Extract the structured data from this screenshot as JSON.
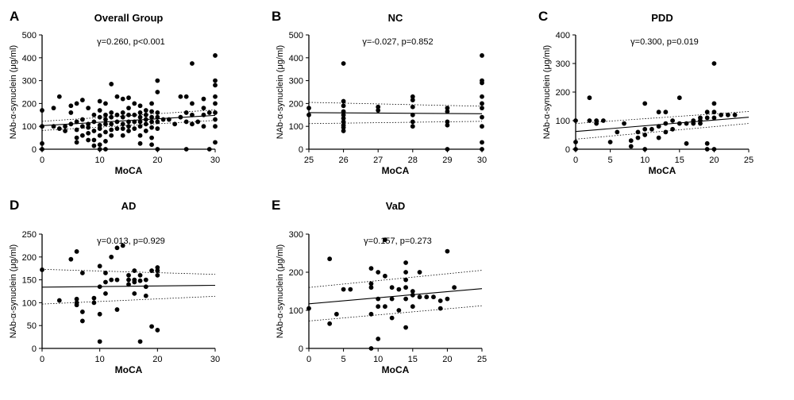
{
  "chart_data": [
    {
      "type": "scatter",
      "panel": "A",
      "title": "Overall Group",
      "stat": "γ=0.260, p<0.001",
      "xlabel": "MoCA",
      "ylabel": "NAb-α-synuclein (μg/ml)",
      "xlim": [
        0,
        30
      ],
      "ylim": [
        0,
        500
      ],
      "xticks": [
        "0",
        "10",
        "20",
        "30"
      ],
      "yticks": [
        "0",
        "100",
        "200",
        "300",
        "400",
        "500"
      ],
      "fit": {
        "y0": 103,
        "y1": 148
      },
      "ci_upper": {
        "y0": 122,
        "y1": 172
      },
      "ci_lower": {
        "y0": 82,
        "y1": 126
      },
      "points": [
        [
          0,
          170
        ],
        [
          0,
          100
        ],
        [
          0,
          25
        ],
        [
          0,
          0
        ],
        [
          2,
          100
        ],
        [
          2,
          180
        ],
        [
          3,
          230
        ],
        [
          3,
          90
        ],
        [
          4,
          100
        ],
        [
          4,
          80
        ],
        [
          5,
          110
        ],
        [
          5,
          160
        ],
        [
          5,
          190
        ],
        [
          6,
          200
        ],
        [
          6,
          120
        ],
        [
          6,
          85
        ],
        [
          6,
          50
        ],
        [
          6,
          30
        ],
        [
          7,
          215
        ],
        [
          7,
          130
        ],
        [
          7,
          100
        ],
        [
          7,
          60
        ],
        [
          8,
          180
        ],
        [
          8,
          110
        ],
        [
          8,
          95
        ],
        [
          8,
          70
        ],
        [
          8,
          40
        ],
        [
          9,
          150
        ],
        [
          9,
          120
        ],
        [
          9,
          80
        ],
        [
          9,
          40
        ],
        [
          9,
          15
        ],
        [
          10,
          210
        ],
        [
          10,
          170
        ],
        [
          10,
          140
        ],
        [
          10,
          105
        ],
        [
          10,
          90
        ],
        [
          10,
          60
        ],
        [
          10,
          20
        ],
        [
          10,
          0
        ],
        [
          11,
          200
        ],
        [
          11,
          150
        ],
        [
          11,
          130
        ],
        [
          11,
          110
        ],
        [
          11,
          75
        ],
        [
          11,
          35
        ],
        [
          11,
          0
        ],
        [
          12,
          285
        ],
        [
          12,
          160
        ],
        [
          12,
          140
        ],
        [
          12,
          110
        ],
        [
          12,
          85
        ],
        [
          12,
          60
        ],
        [
          13,
          230
        ],
        [
          13,
          150
        ],
        [
          13,
          120
        ],
        [
          13,
          90
        ],
        [
          14,
          220
        ],
        [
          14,
          160
        ],
        [
          14,
          140
        ],
        [
          14,
          110
        ],
        [
          14,
          90
        ],
        [
          14,
          60
        ],
        [
          15,
          225
        ],
        [
          15,
          180
        ],
        [
          15,
          150
        ],
        [
          15,
          120
        ],
        [
          15,
          100
        ],
        [
          15,
          80
        ],
        [
          16,
          200
        ],
        [
          16,
          150
        ],
        [
          16,
          120
        ],
        [
          16,
          90
        ],
        [
          17,
          190
        ],
        [
          17,
          160
        ],
        [
          17,
          140
        ],
        [
          17,
          120
        ],
        [
          17,
          100
        ],
        [
          17,
          60
        ],
        [
          17,
          25
        ],
        [
          18,
          170
        ],
        [
          18,
          150
        ],
        [
          18,
          130
        ],
        [
          18,
          110
        ],
        [
          18,
          80
        ],
        [
          19,
          200
        ],
        [
          19,
          165
        ],
        [
          19,
          140
        ],
        [
          19,
          120
        ],
        [
          19,
          95
        ],
        [
          19,
          50
        ],
        [
          19,
          20
        ],
        [
          20,
          300
        ],
        [
          20,
          250
        ],
        [
          20,
          160
        ],
        [
          20,
          140
        ],
        [
          20,
          120
        ],
        [
          20,
          90
        ],
        [
          20,
          0
        ],
        [
          21,
          130
        ],
        [
          22,
          130
        ],
        [
          23,
          110
        ],
        [
          24,
          230
        ],
        [
          24,
          140
        ],
        [
          25,
          230
        ],
        [
          25,
          160
        ],
        [
          25,
          120
        ],
        [
          25,
          0
        ],
        [
          26,
          375
        ],
        [
          26,
          200
        ],
        [
          26,
          150
        ],
        [
          26,
          110
        ],
        [
          27,
          120
        ],
        [
          28,
          180
        ],
        [
          28,
          220
        ],
        [
          28,
          150
        ],
        [
          28,
          100
        ],
        [
          29,
          160
        ],
        [
          29,
          0
        ],
        [
          30,
          410
        ],
        [
          30,
          300
        ],
        [
          30,
          280
        ],
        [
          30,
          230
        ],
        [
          30,
          200
        ],
        [
          30,
          160
        ],
        [
          30,
          130
        ],
        [
          30,
          100
        ],
        [
          30,
          30
        ]
      ]
    },
    {
      "type": "scatter",
      "panel": "B",
      "title": "NC",
      "stat": "γ=-0.027, p=0.852",
      "xlabel": "MoCA",
      "ylabel": "NAb-α-synuclein (μg/ml)",
      "xlim": [
        25,
        30
      ],
      "ylim": [
        0,
        500
      ],
      "xticks": [
        "25",
        "26",
        "27",
        "28",
        "29",
        "30"
      ],
      "yticks": [
        "0",
        "100",
        "200",
        "300",
        "400",
        "500"
      ],
      "fit": {
        "y0": 160,
        "y1": 155
      },
      "ci_upper": {
        "y0": 205,
        "y1": 188
      },
      "ci_lower": {
        "y0": 112,
        "y1": 122
      },
      "points": [
        [
          25,
          180
        ],
        [
          25,
          150
        ],
        [
          26,
          375
        ],
        [
          26,
          210
        ],
        [
          26,
          190
        ],
        [
          26,
          165
        ],
        [
          26,
          150
        ],
        [
          26,
          135
        ],
        [
          26,
          120
        ],
        [
          26,
          105
        ],
        [
          26,
          95
        ],
        [
          26,
          80
        ],
        [
          27,
          185
        ],
        [
          27,
          170
        ],
        [
          28,
          230
        ],
        [
          28,
          215
        ],
        [
          28,
          185
        ],
        [
          28,
          150
        ],
        [
          28,
          120
        ],
        [
          28,
          100
        ],
        [
          29,
          180
        ],
        [
          29,
          165
        ],
        [
          29,
          120
        ],
        [
          29,
          105
        ],
        [
          29,
          0
        ],
        [
          30,
          410
        ],
        [
          30,
          300
        ],
        [
          30,
          290
        ],
        [
          30,
          230
        ],
        [
          30,
          200
        ],
        [
          30,
          180
        ],
        [
          30,
          140
        ],
        [
          30,
          100
        ],
        [
          30,
          30
        ],
        [
          30,
          0
        ]
      ]
    },
    {
      "type": "scatter",
      "panel": "C",
      "title": "PDD",
      "stat": "γ=0.300, p=0.019",
      "xlabel": "MoCA",
      "ylabel": "NAb-α-synuclein (μg/ml)",
      "xlim": [
        0,
        25
      ],
      "ylim": [
        0,
        400
      ],
      "xticks": [
        "0",
        "5",
        "10",
        "15",
        "20",
        "25"
      ],
      "yticks": [
        "0",
        "100",
        "200",
        "300",
        "400"
      ],
      "fit": {
        "y0": 62,
        "y1": 112
      },
      "ci_upper": {
        "y0": 90,
        "y1": 132
      },
      "ci_lower": {
        "y0": 35,
        "y1": 90
      },
      "points": [
        [
          0,
          100
        ],
        [
          0,
          25
        ],
        [
          0,
          0
        ],
        [
          2,
          180
        ],
        [
          2,
          100
        ],
        [
          3,
          100
        ],
        [
          3,
          90
        ],
        [
          4,
          100
        ],
        [
          5,
          25
        ],
        [
          6,
          60
        ],
        [
          7,
          90
        ],
        [
          8,
          30
        ],
        [
          8,
          10
        ],
        [
          9,
          60
        ],
        [
          9,
          40
        ],
        [
          10,
          70
        ],
        [
          10,
          160
        ],
        [
          10,
          50
        ],
        [
          10,
          0
        ],
        [
          11,
          70
        ],
        [
          12,
          130
        ],
        [
          12,
          80
        ],
        [
          12,
          40
        ],
        [
          13,
          130
        ],
        [
          13,
          90
        ],
        [
          13,
          60
        ],
        [
          14,
          100
        ],
        [
          14,
          70
        ],
        [
          15,
          180
        ],
        [
          15,
          90
        ],
        [
          16,
          90
        ],
        [
          16,
          20
        ],
        [
          17,
          100
        ],
        [
          17,
          90
        ],
        [
          18,
          110
        ],
        [
          18,
          100
        ],
        [
          18,
          90
        ],
        [
          19,
          130
        ],
        [
          19,
          110
        ],
        [
          19,
          20
        ],
        [
          19,
          0
        ],
        [
          20,
          300
        ],
        [
          20,
          160
        ],
        [
          20,
          130
        ],
        [
          20,
          110
        ],
        [
          20,
          0
        ],
        [
          21,
          120
        ],
        [
          22,
          120
        ],
        [
          23,
          120
        ]
      ]
    },
    {
      "type": "scatter",
      "panel": "D",
      "title": "AD",
      "stat": "γ=0.013, p=0.929",
      "xlabel": "MoCA",
      "ylabel": "NAb-α-synuclein (μg/ml)",
      "xlim": [
        0,
        30
      ],
      "ylim": [
        0,
        250
      ],
      "xticks": [
        "0",
        "10",
        "20",
        "30"
      ],
      "yticks": [
        "0",
        "50",
        "100",
        "150",
        "200",
        "250"
      ],
      "fit": {
        "y0": 134,
        "y1": 138
      },
      "ci_upper": {
        "y0": 173,
        "y1": 162
      },
      "ci_lower": {
        "y0": 97,
        "y1": 114
      },
      "points": [
        [
          0,
          172
        ],
        [
          3,
          105
        ],
        [
          5,
          195
        ],
        [
          6,
          212
        ],
        [
          6,
          108
        ],
        [
          6,
          100
        ],
        [
          6,
          95
        ],
        [
          7,
          165
        ],
        [
          7,
          80
        ],
        [
          7,
          60
        ],
        [
          9,
          110
        ],
        [
          9,
          100
        ],
        [
          10,
          180
        ],
        [
          10,
          135
        ],
        [
          10,
          75
        ],
        [
          10,
          15
        ],
        [
          11,
          165
        ],
        [
          11,
          145
        ],
        [
          11,
          120
        ],
        [
          12,
          200
        ],
        [
          12,
          150
        ],
        [
          13,
          220
        ],
        [
          13,
          150
        ],
        [
          13,
          85
        ],
        [
          14,
          225
        ],
        [
          15,
          160
        ],
        [
          15,
          150
        ],
        [
          15,
          140
        ],
        [
          16,
          170
        ],
        [
          16,
          150
        ],
        [
          16,
          145
        ],
        [
          16,
          120
        ],
        [
          17,
          160
        ],
        [
          17,
          148
        ],
        [
          17,
          15
        ],
        [
          18,
          150
        ],
        [
          18,
          135
        ],
        [
          18,
          115
        ],
        [
          19,
          170
        ],
        [
          19,
          48
        ],
        [
          20,
          177
        ],
        [
          20,
          170
        ],
        [
          20,
          160
        ],
        [
          20,
          40
        ]
      ]
    },
    {
      "type": "scatter",
      "panel": "E",
      "title": "VaD",
      "stat": "γ=0.157, p=0.273",
      "xlabel": "MoCA",
      "ylabel": "NAb-α-synuclein (μg/ml)",
      "xlim": [
        0,
        25
      ],
      "ylim": [
        0,
        300
      ],
      "xticks": [
        "0",
        "5",
        "10",
        "15",
        "20",
        "25"
      ],
      "yticks": [
        "0",
        "100",
        "200",
        "300"
      ],
      "fit": {
        "y0": 117,
        "y1": 157
      },
      "ci_upper": {
        "y0": 160,
        "y1": 205
      },
      "ci_lower": {
        "y0": 72,
        "y1": 112
      },
      "points": [
        [
          0,
          105
        ],
        [
          3,
          235
        ],
        [
          3,
          65
        ],
        [
          4,
          90
        ],
        [
          5,
          155
        ],
        [
          6,
          155
        ],
        [
          9,
          210
        ],
        [
          9,
          170
        ],
        [
          9,
          160
        ],
        [
          9,
          90
        ],
        [
          9,
          0
        ],
        [
          10,
          200
        ],
        [
          10,
          130
        ],
        [
          10,
          110
        ],
        [
          10,
          25
        ],
        [
          11,
          190
        ],
        [
          11,
          285
        ],
        [
          11,
          110
        ],
        [
          12,
          160
        ],
        [
          12,
          130
        ],
        [
          12,
          80
        ],
        [
          13,
          155
        ],
        [
          13,
          100
        ],
        [
          14,
          225
        ],
        [
          14,
          200
        ],
        [
          14,
          180
        ],
        [
          14,
          160
        ],
        [
          14,
          130
        ],
        [
          14,
          55
        ],
        [
          15,
          150
        ],
        [
          15,
          140
        ],
        [
          15,
          110
        ],
        [
          16,
          200
        ],
        [
          16,
          135
        ],
        [
          17,
          135
        ],
        [
          18,
          135
        ],
        [
          19,
          125
        ],
        [
          19,
          105
        ],
        [
          20,
          255
        ],
        [
          20,
          130
        ],
        [
          21,
          160
        ]
      ]
    }
  ]
}
